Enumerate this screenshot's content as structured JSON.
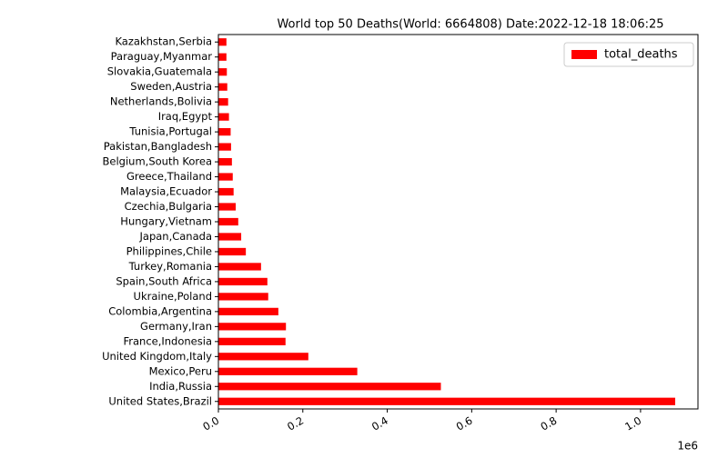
{
  "chart_data": {
    "type": "barh",
    "title": "World top 50 Deaths(World: 6664808) Date:2022-12-18 18:06:25",
    "categories": [
      "United States,Brazil",
      "India,Russia",
      "Mexico,Peru",
      "United Kingdom,Italy",
      "France,Indonesia",
      "Germany,Iran",
      "Colombia,Argentina",
      "Ukraine,Poland",
      "Spain,South Africa",
      "Turkey,Romania",
      "Philippines,Chile",
      "Japan,Canada",
      "Hungary,Vietnam",
      "Czechia,Bulgaria",
      "Malaysia,Ecuador",
      "Greece,Thailand",
      "Belgium,South Korea",
      "Pakistan,Bangladesh",
      "Tunisia,Portugal",
      "Iraq,Egypt",
      "Netherlands,Bolivia",
      "Sweden,Austria",
      "Slovakia,Guatemala",
      "Paraguay,Myanmar",
      "Kazakhstan,Serbia"
    ],
    "series": [
      {
        "name": "total_deaths",
        "color": "#ff0000",
        "values": [
          1082000,
          527000,
          329000,
          213000,
          159000,
          160000,
          142000,
          118000,
          116000,
          101000,
          65000,
          54000,
          47000,
          41000,
          36000,
          34000,
          32000,
          30000,
          29000,
          25000,
          23000,
          21000,
          20000,
          19000,
          19000
        ]
      }
    ],
    "xlim": [
      0,
      1136000
    ],
    "xticks": [
      {
        "value": 0,
        "label": "0.0"
      },
      {
        "value": 200000,
        "label": "0.2"
      },
      {
        "value": 400000,
        "label": "0.4"
      },
      {
        "value": 600000,
        "label": "0.6"
      },
      {
        "value": 800000,
        "label": "0.8"
      },
      {
        "value": 1000000,
        "label": "1.0"
      }
    ],
    "x_offset_label": "1e6",
    "legend": "upper right",
    "grid": false
  }
}
